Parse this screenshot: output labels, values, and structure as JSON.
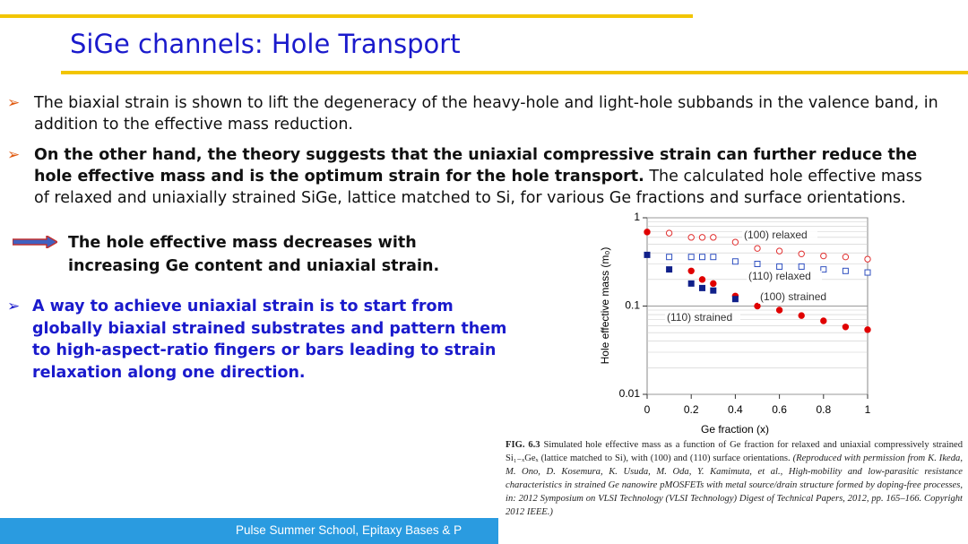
{
  "title": "SiGe channels: Hole Transport",
  "bullets": [
    {
      "text": "The biaxial strain is shown to lift the degeneracy of the heavy-hole and light-hole subbands in the valence band, in addition to the effective mass reduction."
    },
    {
      "bold": "On the other hand, the theory suggests that the uniaxial compressive strain can further reduce the hole effective mass and is the optimum strain for the hole transport.",
      "text": "The calculated hole effective mass of relaxed and uniaxially strained SiGe, lattice matched to Si, for various Ge fractions and surface orientations."
    },
    {
      "text": "A way to achieve uniaxial strain is to start from globally biaxial strained substrates and pattern them to high-aspect-ratio fingers or bars leading to strain relaxation along one direction."
    }
  ],
  "conclusion": "The hole effective mass decreases with increasing Ge content and uniaxial strain.",
  "footer": "Pulse Summer School, Epitaxy Bases & P",
  "caption": {
    "label": "FIG. 6.3",
    "text": "Simulated hole effective mass as a function of Ge fraction for relaxed and uniaxial compressively strained Si₁₋ₓGeₓ (lattice matched to Si), with (100) and (110) surface orientations.",
    "credit": "(Reproduced with permission from K. Ikeda, M. Ono, D. Kosemura, K. Usuda, M. Oda, Y. Kamimuta, et al., High-mobility and low-parasitic resistance characteristics in strained Ge nanowire pMOSFETs with metal source/drain structure formed by doping-free processes, in: 2012 Symposium on VLSI Technology (VLSI Technology) Digest of Technical Papers, 2012, pp. 165–166. Copyright 2012 IEEE.)"
  },
  "chart_data": {
    "type": "scatter",
    "xlabel": "Ge fraction (x)",
    "ylabel": "Hole effective mass (m₀)",
    "xlim": [
      0,
      1
    ],
    "xticks": [
      0,
      0.2,
      0.4,
      0.6,
      0.8,
      1
    ],
    "ylim": [
      0.01,
      1
    ],
    "yticks": [
      1,
      0.1,
      0.01
    ],
    "log_y": true,
    "grid": true,
    "series": [
      {
        "name": "(100) relaxed",
        "color": "#e03030",
        "marker": "circle",
        "filled": false,
        "x": [
          0.1,
          0.2,
          0.25,
          0.3,
          0.4,
          0.5,
          0.6,
          0.7,
          0.8,
          0.9,
          1.0
        ],
        "values": [
          0.67,
          0.6,
          0.6,
          0.6,
          0.53,
          0.45,
          0.42,
          0.39,
          0.37,
          0.36,
          0.34
        ]
      },
      {
        "name": "(110) relaxed",
        "color": "#3050c0",
        "marker": "square",
        "filled": false,
        "x": [
          0.1,
          0.2,
          0.25,
          0.3,
          0.4,
          0.5,
          0.6,
          0.7,
          0.8,
          0.9,
          1.0
        ],
        "values": [
          0.36,
          0.36,
          0.36,
          0.36,
          0.32,
          0.3,
          0.28,
          0.28,
          0.26,
          0.25,
          0.24
        ]
      },
      {
        "name": "(100) strained",
        "color": "#e00000",
        "marker": "circle",
        "filled": true,
        "x": [
          0,
          0.2,
          0.25,
          0.3,
          0.4,
          0.5,
          0.6,
          0.7,
          0.8,
          0.9,
          1.0
        ],
        "values": [
          0.69,
          0.25,
          0.2,
          0.18,
          0.13,
          0.1,
          0.09,
          0.078,
          0.068,
          0.058,
          0.054
        ]
      },
      {
        "name": "(110) strained",
        "color": "#10208a",
        "marker": "square",
        "filled": true,
        "x": [
          0,
          0.1,
          0.2,
          0.25,
          0.3,
          0.4
        ],
        "values": [
          0.38,
          0.26,
          0.18,
          0.16,
          0.15,
          0.12
        ]
      }
    ]
  }
}
